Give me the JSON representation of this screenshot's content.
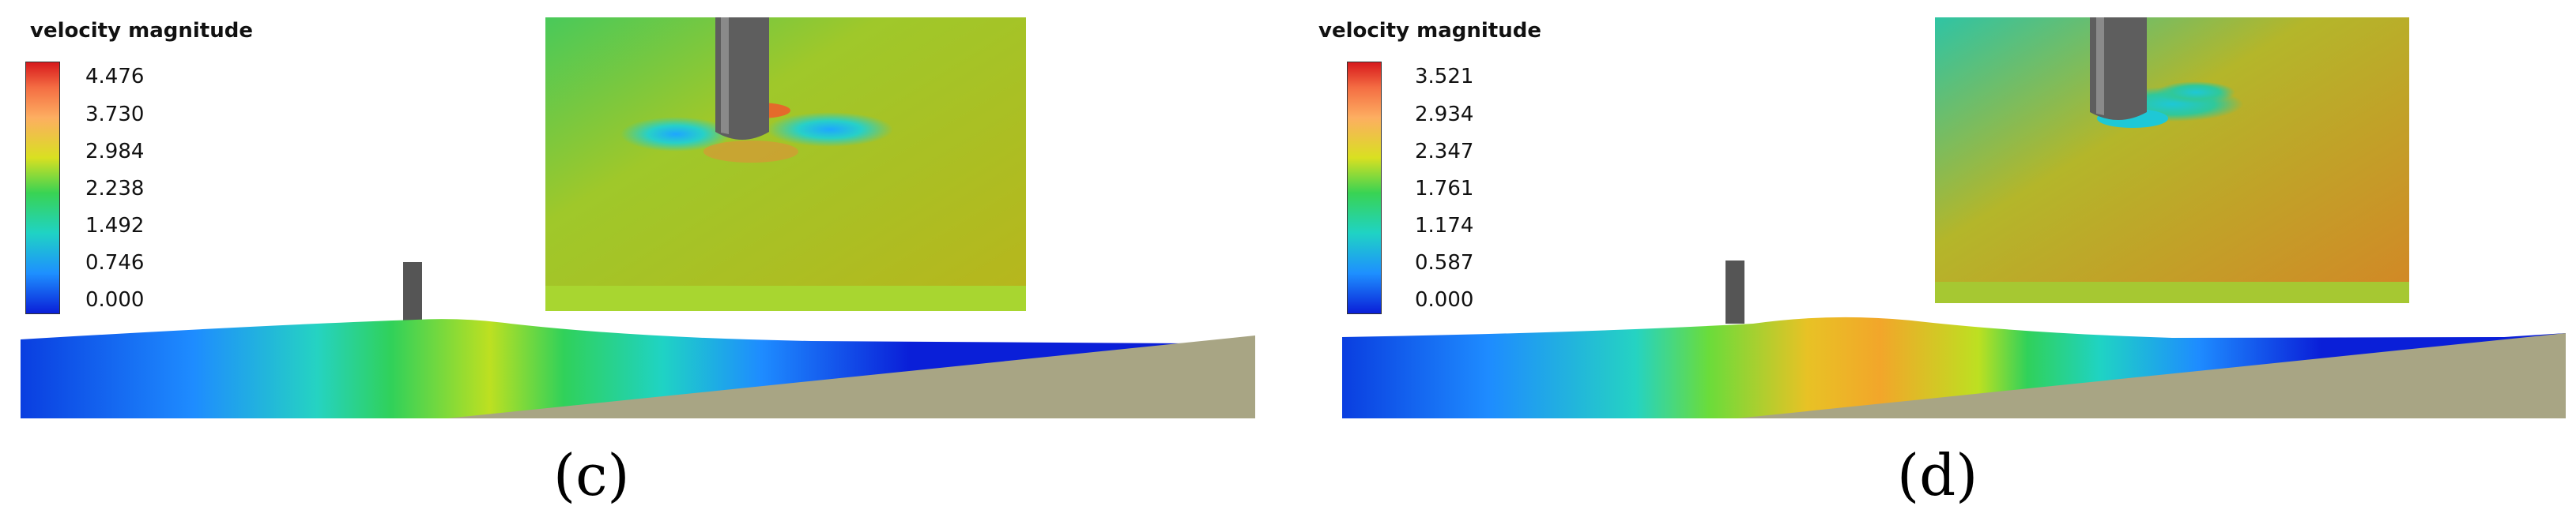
{
  "panels": [
    {
      "id": "c",
      "legend_title": "velocity magnitude",
      "ticks": [
        "4.476",
        "3.730",
        "2.984",
        "2.238",
        "1.492",
        "0.746",
        "0.000"
      ],
      "caption": "(c)"
    },
    {
      "id": "d",
      "legend_title": "velocity magnitude",
      "ticks": [
        "3.521",
        "2.934",
        "2.347",
        "1.761",
        "1.174",
        "0.587",
        "0.000"
      ],
      "caption": "(d)"
    }
  ],
  "colors": {
    "seabed": "#a8a584",
    "pile": "#5a5a5a",
    "low": "#0a1fd8",
    "high": "#d7191c"
  }
}
